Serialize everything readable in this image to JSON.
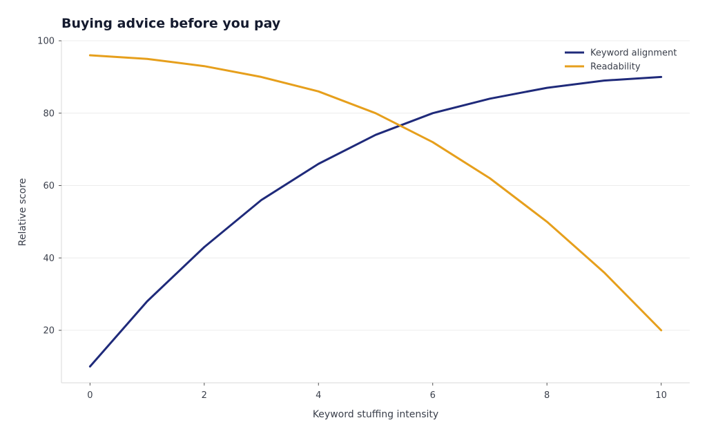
{
  "chart_data": {
    "type": "line",
    "title": "Buying advice before you pay",
    "xlabel": "Keyword stuffing intensity",
    "ylabel": "Relative score",
    "x": [
      0,
      1,
      2,
      3,
      4,
      5,
      6,
      7,
      8,
      9,
      10
    ],
    "xlim": [
      -0.5,
      10.5
    ],
    "ylim": [
      5.5,
      100
    ],
    "x_ticks": [
      "0",
      "2",
      "4",
      "6",
      "8",
      "10"
    ],
    "y_ticks": [
      "20",
      "40",
      "60",
      "80",
      "100"
    ],
    "grid": "horizontal",
    "legend_position": "top-right",
    "series": [
      {
        "name": "Keyword alignment",
        "color": "#1f2a7a",
        "values": [
          10,
          28,
          43,
          56,
          66,
          74,
          80,
          84,
          87,
          89,
          90
        ]
      },
      {
        "name": "Readability",
        "color": "#e69f1c",
        "values": [
          96,
          95,
          93,
          90,
          86,
          80,
          72,
          62,
          50,
          36,
          20
        ]
      }
    ]
  }
}
